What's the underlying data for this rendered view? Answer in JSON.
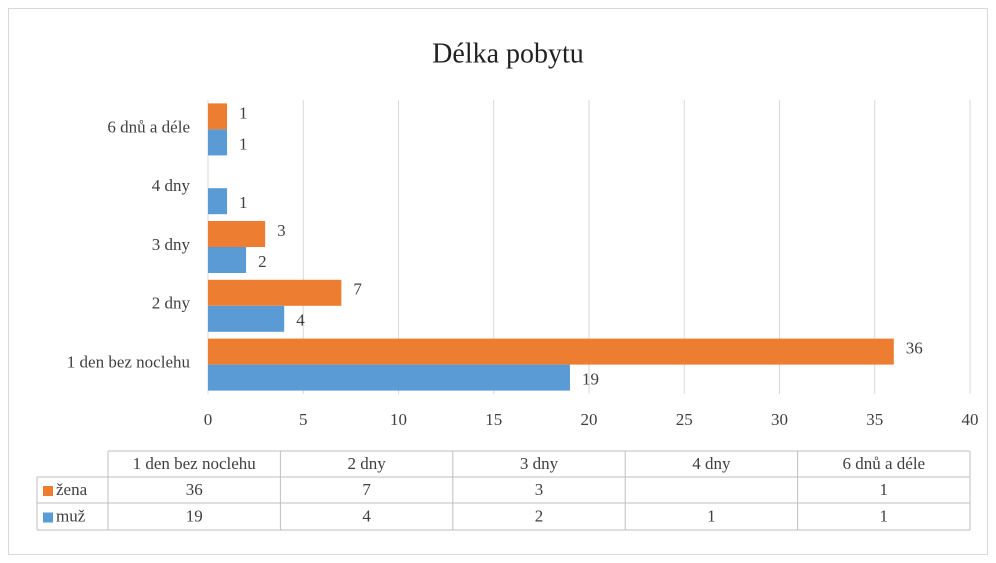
{
  "chart_data": {
    "type": "bar",
    "orientation": "horizontal",
    "title": "Délka pobytu",
    "categories": [
      "1 den bez noclehu",
      "2 dny",
      "3 dny",
      "4 dny",
      "6 dnů a déle"
    ],
    "series": [
      {
        "name": "žena",
        "color": "#ED7D31",
        "values": [
          36,
          7,
          3,
          null,
          1
        ]
      },
      {
        "name": "muž",
        "color": "#5B9BD5",
        "values": [
          19,
          4,
          2,
          1,
          1
        ]
      }
    ],
    "xlim": [
      0,
      40
    ],
    "xticks": [
      0,
      5,
      10,
      15,
      20,
      25,
      30,
      35,
      40
    ],
    "grid": true,
    "data_table": true
  }
}
